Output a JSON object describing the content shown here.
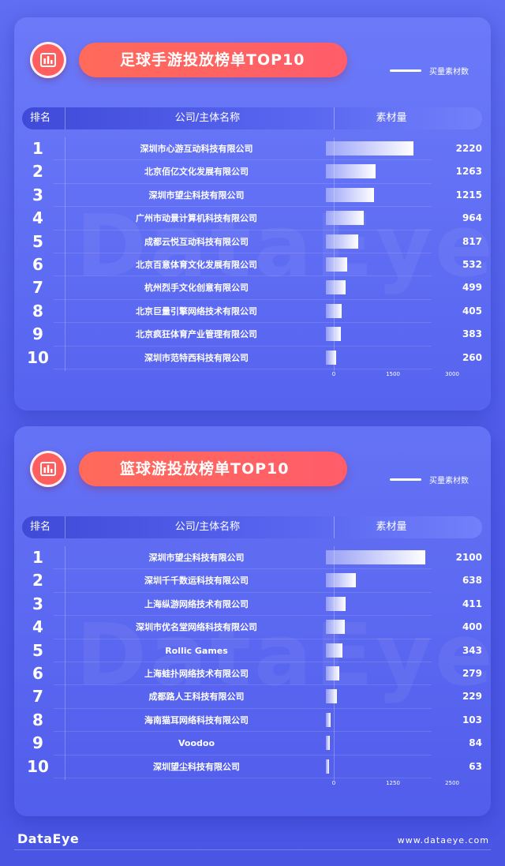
{
  "footer": {
    "logo": "DataEye",
    "url": "www.dataeye.com"
  },
  "watermark": "DataEye",
  "chart_data": [
    {
      "type": "bar",
      "title": "足球手游投放榜单TOP10",
      "legend": "买量素材数",
      "header": {
        "rank": "排名",
        "company": "公司/主体名称",
        "value": "素材量"
      },
      "ranks": [
        "1",
        "2",
        "3",
        "4",
        "5",
        "6",
        "7",
        "8",
        "9",
        "10"
      ],
      "categories": [
        "深圳市心游互动科技有限公司",
        "北京佰亿文化发展有限公司",
        "深圳市望尘科技有限公司",
        "广州市动景计算机科技有限公司",
        "成都云悦互动科技有限公司",
        "北京百意体育文化发展有限公司",
        "杭州烈手文化创意有限公司",
        "北京巨量引擎网络技术有限公司",
        "北京疯狂体育产业管理有限公司",
        "深圳市范特西科技有限公司"
      ],
      "values": [
        2220,
        1263,
        1215,
        964,
        817,
        532,
        499,
        405,
        383,
        260
      ],
      "xlim": [
        0,
        3000
      ],
      "ticks": [
        "0",
        "1500",
        "3000"
      ]
    },
    {
      "type": "bar",
      "title": "篮球游投放榜单TOP10",
      "legend": "买量素材数",
      "header": {
        "rank": "排名",
        "company": "公司/主体名称",
        "value": "素材量"
      },
      "ranks": [
        "1",
        "2",
        "3",
        "4",
        "5",
        "6",
        "7",
        "8",
        "9",
        "10"
      ],
      "categories": [
        "深圳市望尘科技有限公司",
        "深圳千千数运科技有限公司",
        "上海纵游网络技术有限公司",
        "深圳市优名堂网络科技有限公司",
        "Rollic Games",
        "上海蛙扑网络技术有限公司",
        "成都路人王科技有限公司",
        "海南猫耳网络科技有限公司",
        "Voodoo",
        "深圳望尘科技有限公司"
      ],
      "values": [
        2100,
        638,
        411,
        400,
        343,
        279,
        229,
        103,
        84,
        63
      ],
      "xlim": [
        0,
        2500
      ],
      "ticks": [
        "0",
        "1250",
        "2500"
      ]
    }
  ]
}
